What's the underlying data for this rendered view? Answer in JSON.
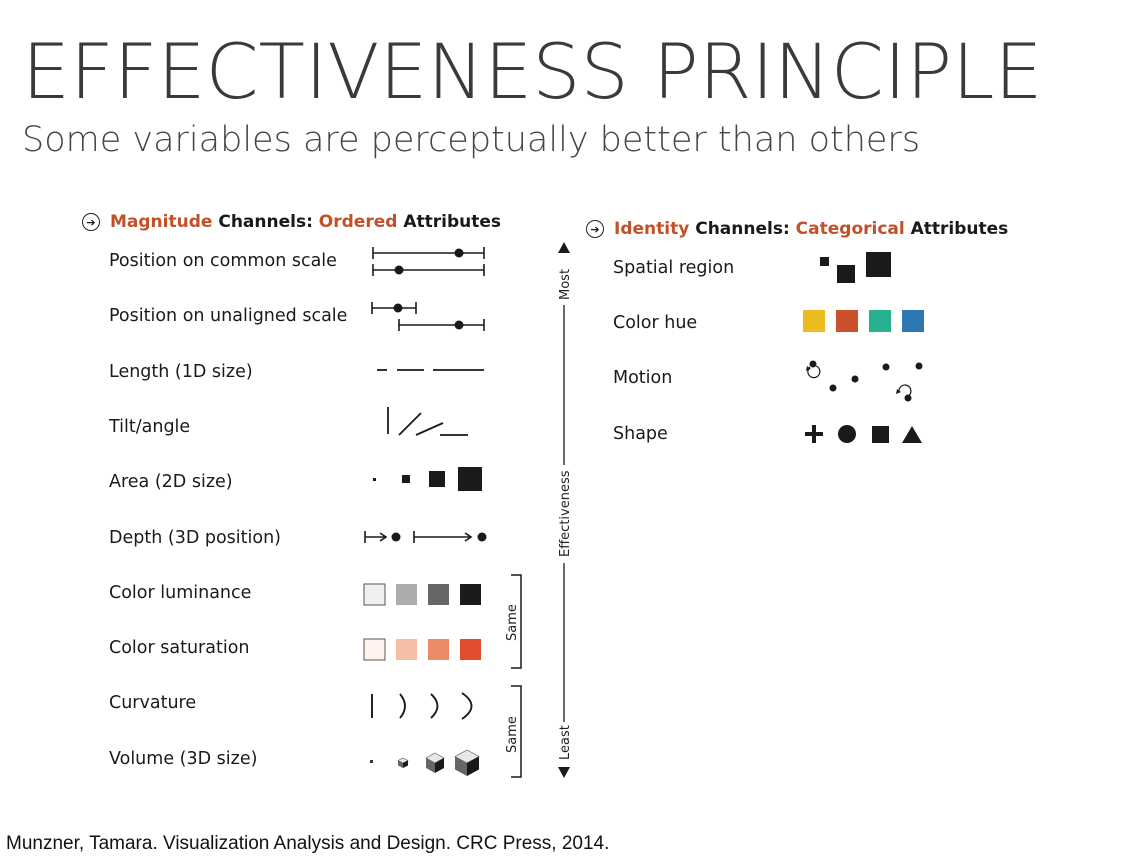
{
  "title": "EFFECTIVENESS PRINCIPLE",
  "subtitle": "Some variables are perceptually better than others",
  "magnitude": {
    "word1": "Magnitude",
    "word2": " Channels: ",
    "word3": "Ordered",
    "word4": " Attributes",
    "items": [
      "Position on common scale",
      "Position on unaligned scale",
      "Length (1D size)",
      "Tilt/angle",
      "Area (2D size)",
      "Depth (3D position)",
      "Color luminance",
      "Color saturation",
      "Curvature",
      "Volume (3D size)"
    ]
  },
  "identity": {
    "word1": "Identity",
    "word2": " Channels: ",
    "word3": "Categorical",
    "word4": " Attributes",
    "items": [
      "Spatial region",
      "Color hue",
      "Motion",
      "Shape"
    ]
  },
  "axis": {
    "most": "Most",
    "effectiveness": "Effectiveness",
    "least": "Least",
    "same": "Same"
  },
  "colors": {
    "accent": "#c4502a",
    "luminance": [
      "#f0f0f0",
      "#acacac",
      "#666666",
      "#1b1b1b"
    ],
    "saturation": [
      "#fdf3ec",
      "#f5bfa6",
      "#ea8a66",
      "#e04e2f"
    ],
    "hue": [
      "#ecbb21",
      "#c9522d",
      "#27b08e",
      "#2b78b3"
    ]
  },
  "citation": "Munzner, Tamara. Visualization Analysis and Design. CRC Press, 2014."
}
